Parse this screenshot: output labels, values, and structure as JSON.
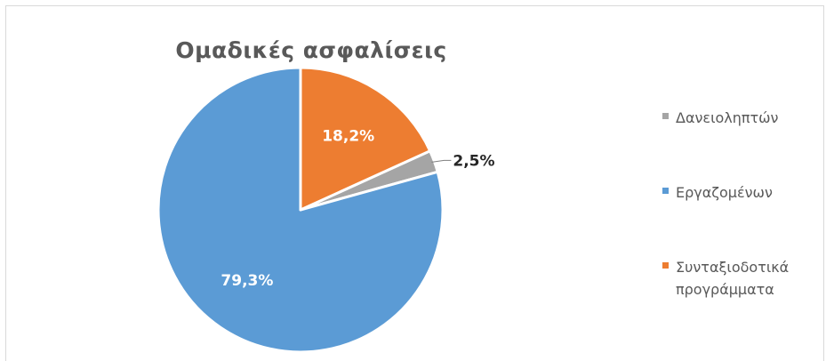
{
  "chart_data": {
    "type": "pie",
    "title": "Ομαδικές ασφαλίσεις",
    "categories": [
      "Δανειοληπτών",
      "Εργαζομένων",
      "Συνταξιοδοτικά προγράμματα"
    ],
    "values": [
      2.5,
      79.3,
      18.2
    ],
    "data_labels": [
      "2,5%",
      "79,3%",
      "18,2%"
    ],
    "colors": [
      "#a5a5a5",
      "#5b9bd5",
      "#ed7d31"
    ],
    "label_colors": [
      "#262626",
      "#ffffff",
      "#ffffff"
    ],
    "legend": {
      "position": "right",
      "entries": [
        "Δανειοληπτών",
        "Εργαζομένων",
        "Συνταξιοδοτικά προγράμματα"
      ]
    }
  }
}
